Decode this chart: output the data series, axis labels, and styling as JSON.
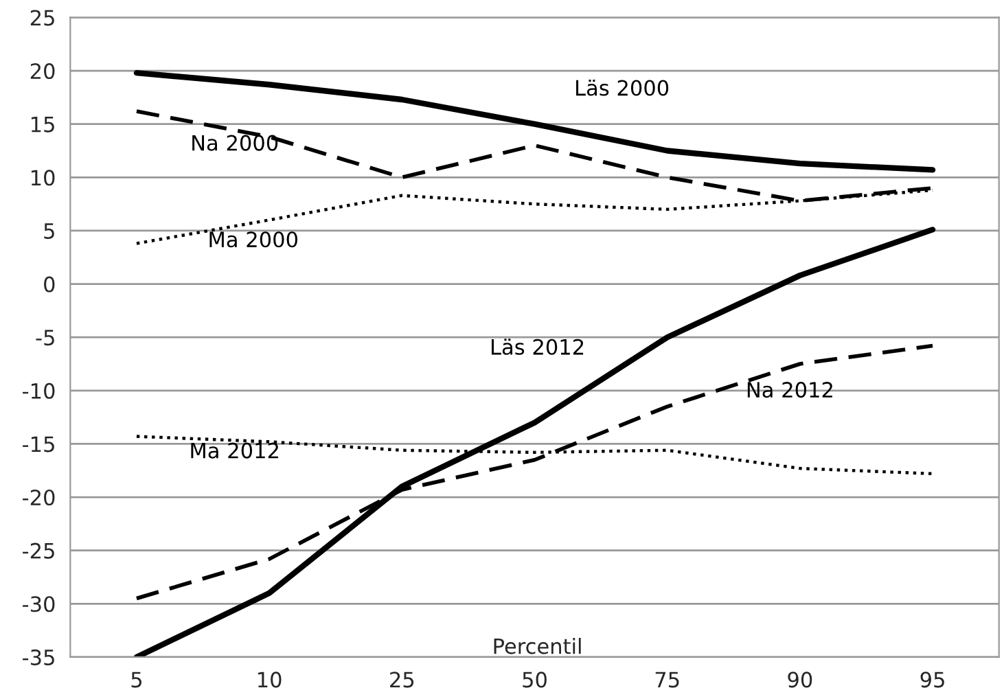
{
  "chart_data": {
    "type": "line",
    "xlabel": "Percentil",
    "categories": [
      "5",
      "10",
      "25",
      "50",
      "75",
      "90",
      "95"
    ],
    "ylim": [
      -35,
      25
    ],
    "yticks": [
      -35,
      -30,
      -25,
      -20,
      -15,
      -10,
      -5,
      0,
      5,
      10,
      15,
      20,
      25
    ],
    "grid": "y",
    "legend": false,
    "marker": "none",
    "series": [
      {
        "name": "Läs 2000",
        "color": "#000000",
        "line_style": "solid",
        "values": [
          19.8,
          18.7,
          17.3,
          15,
          12.5,
          11.3,
          10.7
        ]
      },
      {
        "name": "Na 2000",
        "color": "#000000",
        "line_style": "dashed",
        "values": [
          16.2,
          13.8,
          10,
          13,
          10,
          7.8,
          9
        ]
      },
      {
        "name": "Ma 2000",
        "color": "#000000",
        "line_style": "dotted",
        "values": [
          3.8,
          6,
          8.3,
          7.5,
          7,
          7.8,
          8.8
        ]
      },
      {
        "name": "Läs 2012",
        "color": "#000000",
        "line_style": "solid",
        "values": [
          -35,
          -29,
          -19,
          -13,
          -5,
          0.8,
          5.1
        ]
      },
      {
        "name": "Na 2012",
        "color": "#000000",
        "line_style": "dashed",
        "values": [
          -29.5,
          -25.8,
          -19.3,
          -16.5,
          -11.5,
          -7.5,
          -5.8
        ]
      },
      {
        "name": "Ma 2012",
        "color": "#000000",
        "line_style": "dotted",
        "values": [
          -14.3,
          -14.8,
          -15.6,
          -15.8,
          -15.6,
          -17.3,
          -17.8
        ]
      }
    ]
  }
}
